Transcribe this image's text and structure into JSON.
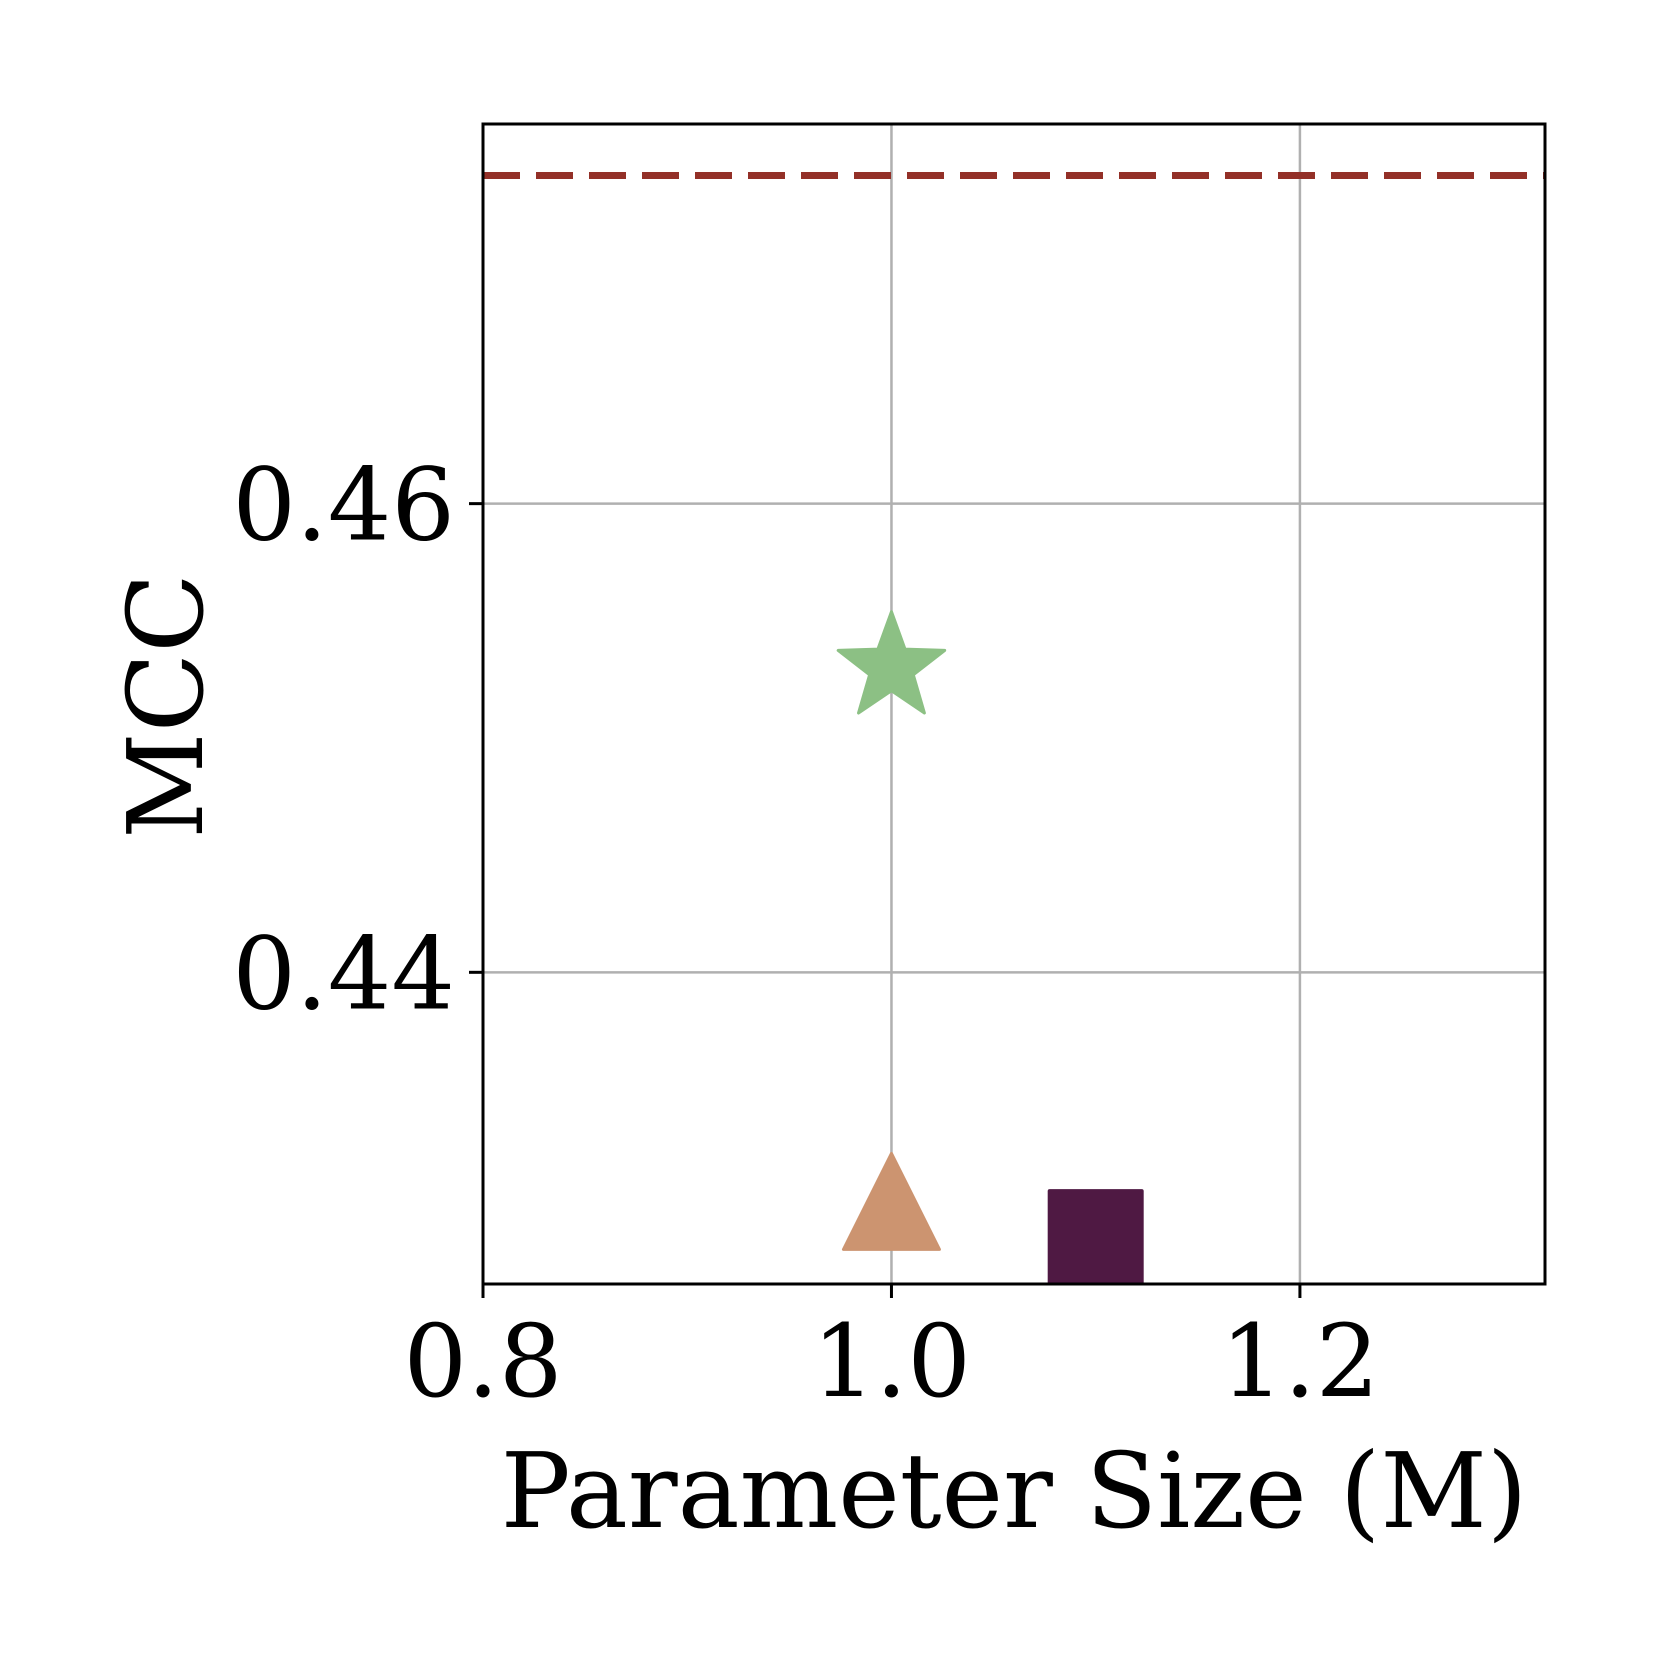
{
  "chart_data": {
    "type": "scatter",
    "xlabel": "Parameter Size (M)",
    "ylabel": "MCC",
    "xlim": [
      0.8,
      1.32
    ],
    "ylim": [
      0.4267,
      0.4762
    ],
    "xticks": [
      {
        "value": 0.8,
        "label": "0.8"
      },
      {
        "value": 1.0,
        "label": "1.0"
      },
      {
        "value": 1.2,
        "label": "1.2"
      }
    ],
    "yticks": [
      {
        "value": 0.44,
        "label": "0.44"
      },
      {
        "value": 0.46,
        "label": "0.46"
      }
    ],
    "grid": true,
    "points": [
      {
        "marker": "star",
        "x": 1.0,
        "y": 0.453,
        "color": "#8cc084"
      },
      {
        "marker": "triangle",
        "x": 1.0,
        "y": 0.4292,
        "color": "#cc9470"
      },
      {
        "marker": "square",
        "x": 1.1,
        "y": 0.4287,
        "color": "#4f1943"
      }
    ],
    "reference_line": {
      "orientation": "horizontal",
      "y": 0.474,
      "style": "dashed",
      "color": "#933028"
    }
  }
}
